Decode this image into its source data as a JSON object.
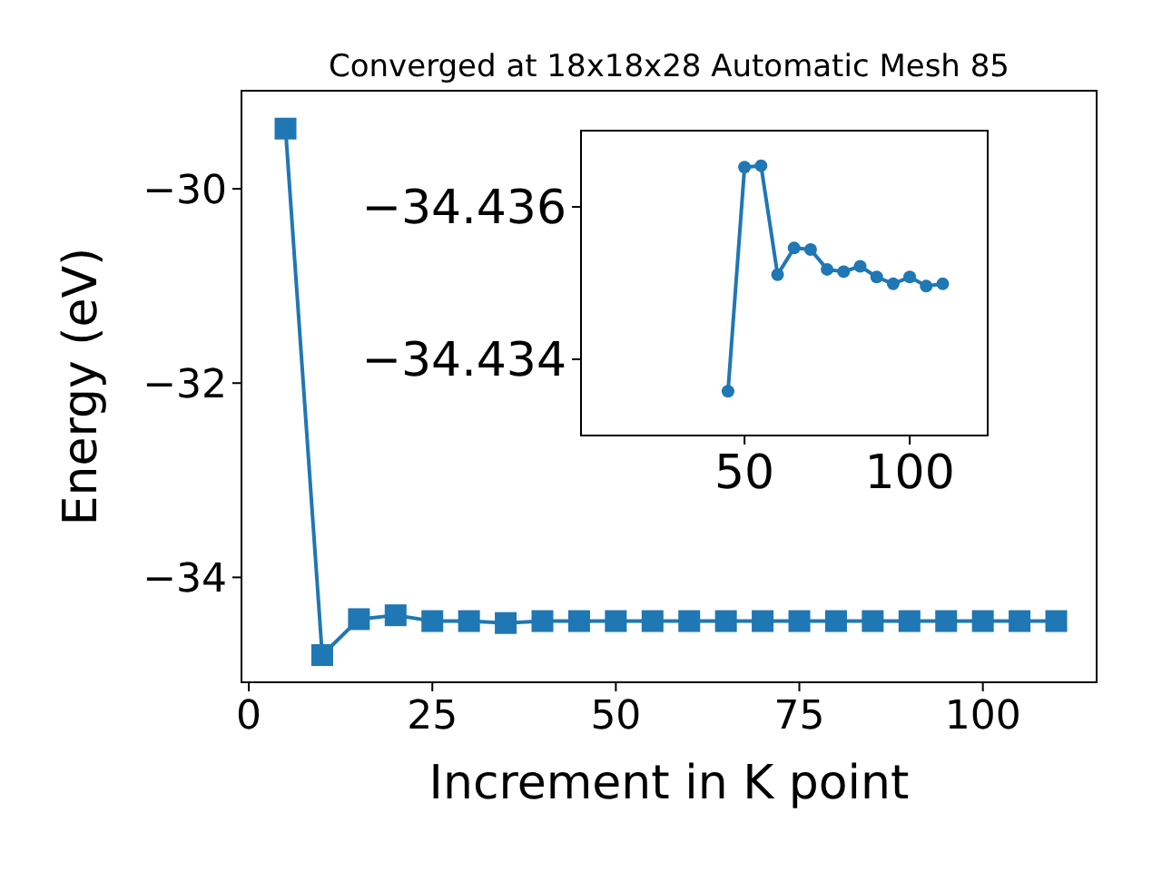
{
  "chart_data": [
    {
      "type": "line",
      "title": "Converged at 18x18x28 Automatic Mesh 85",
      "xlabel": "Increment in K point",
      "ylabel": "Energy (eV)",
      "marker": "square",
      "grid": false,
      "x": [
        5,
        10,
        15,
        20,
        25,
        30,
        35,
        40,
        45,
        50,
        55,
        60,
        65,
        70,
        75,
        80,
        85,
        90,
        95,
        100,
        105,
        110
      ],
      "series": [
        {
          "color": "#1f77b4",
          "values": [
            -29.38,
            -34.8,
            -34.43,
            -34.39,
            -34.45,
            -34.45,
            -34.47,
            -34.45,
            -34.45,
            -34.45,
            -34.45,
            -34.45,
            -34.45,
            -34.45,
            -34.45,
            -34.45,
            -34.45,
            -34.45,
            -34.45,
            -34.45,
            -34.45,
            -34.45
          ]
        }
      ],
      "xlim": [
        -1,
        115.5
      ],
      "ylim": [
        -35.08,
        -28.99
      ],
      "xticks": [
        0,
        25,
        50,
        75,
        100
      ],
      "yticks": [
        -30,
        -32,
        -34
      ]
    },
    {
      "type": "line",
      "marker": "circle",
      "grid": false,
      "x": [
        45,
        50,
        55,
        60,
        65,
        70,
        75,
        80,
        85,
        90,
        95,
        100,
        105,
        110
      ],
      "series": [
        {
          "color": "#1f77b4",
          "values": [
            -34.43358,
            -34.43652,
            -34.43654,
            -34.43511,
            -34.43546,
            -34.43544,
            -34.43518,
            -34.43515,
            -34.43522,
            -34.43508,
            -34.43499,
            -34.43508,
            -34.43496,
            -34.43499
          ]
        }
      ],
      "xlim": [
        0.5,
        123.6
      ],
      "ylim": [
        -34.433,
        -34.437
      ],
      "xticks": [
        50,
        100
      ],
      "yticks": [
        -34.436,
        -34.434
      ]
    }
  ]
}
